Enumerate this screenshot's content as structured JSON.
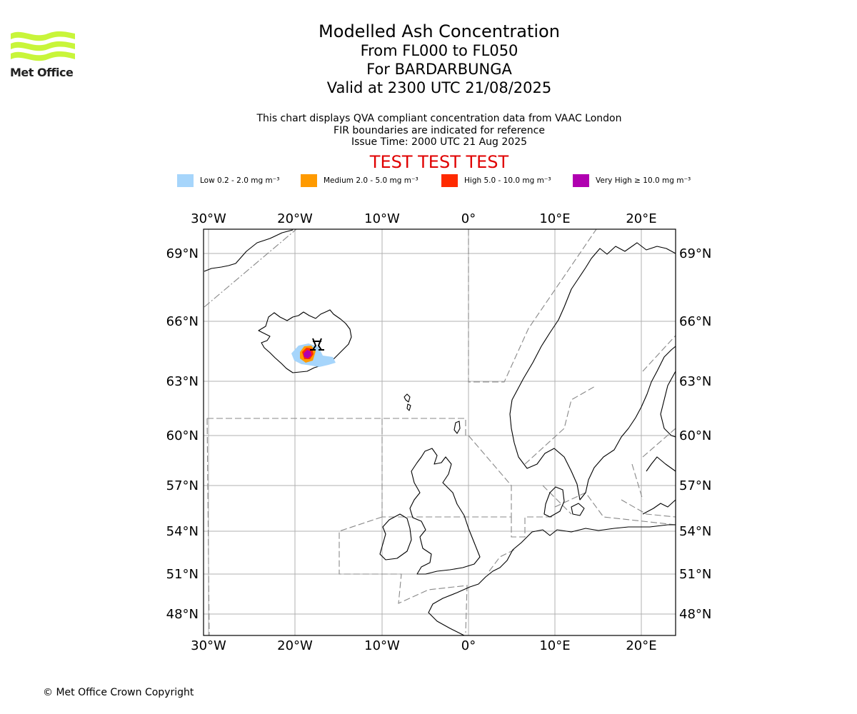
{
  "logo": {
    "name": "Met Office"
  },
  "title": "Modelled Ash Concentration",
  "subtitle_lines": [
    "From FL000 to FL050",
    "For BARDARBUNGA",
    "Valid at 2300 UTC 21/08/2025"
  ],
  "info_lines": [
    "This chart displays QVA compliant concentration data from VAAC London",
    "FIR boundaries are indicated for reference",
    "Issue Time: 2000 UTC 21 Aug 2025"
  ],
  "test_banner": "TEST TEST TEST",
  "legend": [
    {
      "label": "Low 0.2 - 2.0 mg m⁻³",
      "color": "#a6d5fb"
    },
    {
      "label": "Medium 2.0 - 5.0 mg m⁻³",
      "color": "#ff9a00"
    },
    {
      "label": "High 5.0 - 10.0 mg m⁻³",
      "color": "#ff2a00"
    },
    {
      "label": "Very High ≥ 10.0 mg m⁻³",
      "color": "#b000b0"
    }
  ],
  "map": {
    "lon_labels": [
      "30°W",
      "20°W",
      "10°W",
      "0°",
      "10°E",
      "20°E"
    ],
    "lat_labels": [
      "69°N",
      "66°N",
      "63°N",
      "60°N",
      "57°N",
      "54°N",
      "51°N",
      "48°N"
    ],
    "volcano": "BARDARBUNGA",
    "volcano_icon": "volcano-icon"
  },
  "copyright": "© Met Office Crown Copyright"
}
